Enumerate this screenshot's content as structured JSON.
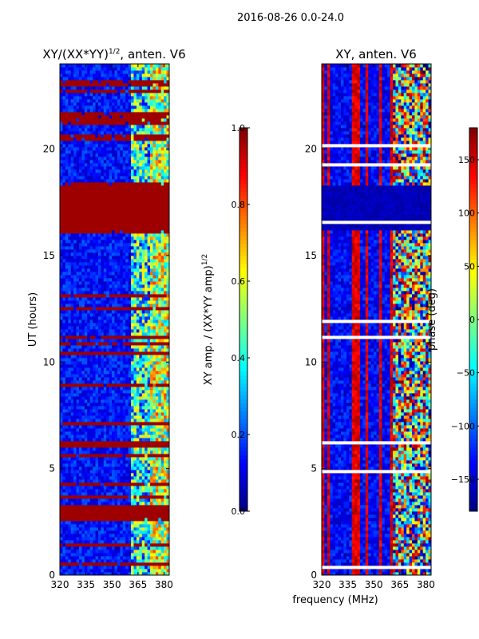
{
  "suptitle": "2016-08-26 0.0-24.0",
  "xlabel_shared": "frequency (MHz)",
  "chart_data": [
    {
      "type": "heatmap",
      "title_main": "XY/(XX*YY)",
      "title_sup": "1/2",
      "title_rest": ", anten. V6",
      "ylabel": "UT (hours)",
      "xlim": [
        320,
        383
      ],
      "ylim": [
        0,
        24
      ],
      "xticks": [
        "320",
        "335",
        "350",
        "365",
        "380"
      ],
      "xtick_values": [
        320,
        335,
        350,
        365,
        380
      ],
      "yticks": [
        "0",
        "5",
        "10",
        "15",
        "20"
      ],
      "ytick_values": [
        0,
        5,
        10,
        15,
        20
      ],
      "colorbar": {
        "label_main": "XY amp. / (XX*YY amp)",
        "label_sup": "1/2",
        "min": 0.0,
        "max": 1.0,
        "ticks": [
          "0.0",
          "0.2",
          "0.4",
          "0.6",
          "0.8",
          "1.0"
        ],
        "tick_values": [
          0.0,
          0.2,
          0.4,
          0.6,
          0.8,
          1.0
        ]
      },
      "saturated_bands_ut": [
        [
          16.2,
          18.3
        ],
        [
          10.3,
          10.5
        ],
        [
          6.0,
          6.3
        ],
        [
          2.8,
          3.3
        ]
      ]
    },
    {
      "type": "heatmap",
      "title": "XY, anten. V6",
      "xlim": [
        320,
        383
      ],
      "ylim": [
        0,
        24
      ],
      "xticks": [
        "320",
        "335",
        "350",
        "365",
        "380"
      ],
      "xtick_values": [
        320,
        335,
        350,
        365,
        380
      ],
      "yticks": [
        "0",
        "5",
        "10",
        "15",
        "20"
      ],
      "ytick_values": [
        0,
        5,
        10,
        15,
        20
      ],
      "colorbar": {
        "label": "phase (deg)",
        "min": -180,
        "max": 180,
        "ticks": [
          "−150",
          "−100",
          "−50",
          "0",
          "50",
          "100",
          "150"
        ],
        "tick_values": [
          -150,
          -100,
          -50,
          0,
          50,
          100,
          150
        ]
      },
      "low_phase_band_ut": [
        16.2,
        18.3
      ]
    }
  ]
}
